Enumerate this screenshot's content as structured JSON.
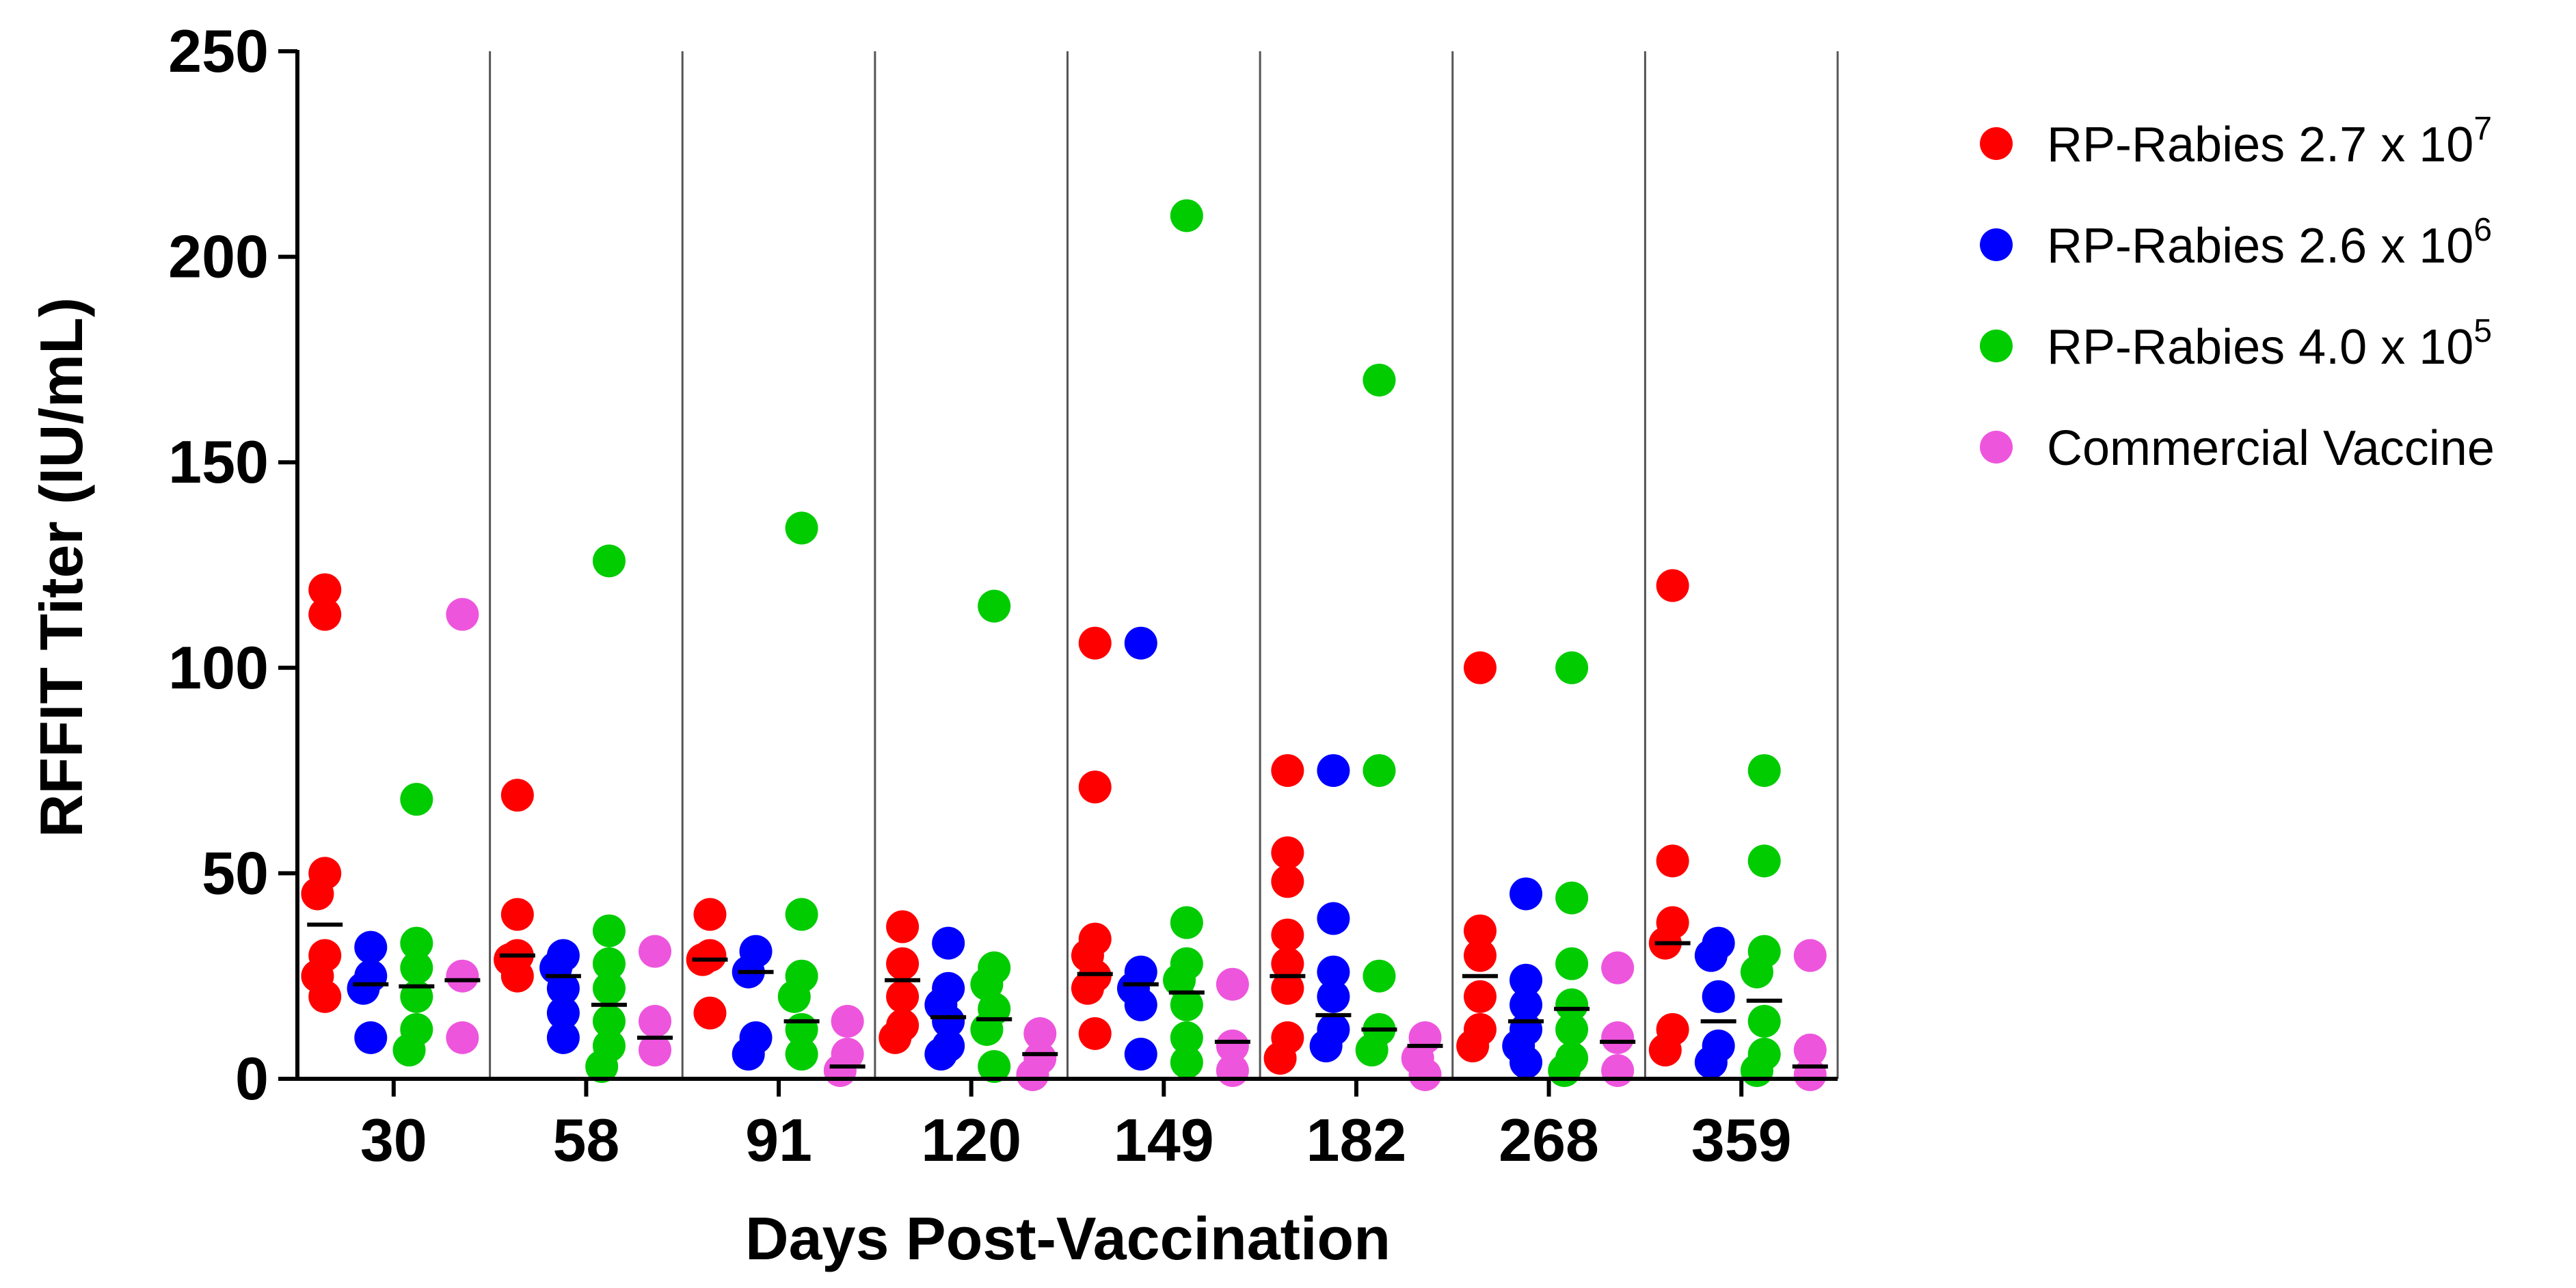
{
  "chart_data": {
    "type": "scatter",
    "xlabel": "Days Post-Vaccination",
    "ylabel": "RFFIT Titer (IU/mL)",
    "ylim": [
      0,
      250
    ],
    "yticks": [
      "0",
      "50",
      "100",
      "150",
      "200",
      "250"
    ],
    "ytick_values": [
      0,
      50,
      100,
      150,
      200,
      250
    ],
    "categories": [
      "30",
      "58",
      "91",
      "120",
      "149",
      "182",
      "268",
      "359"
    ],
    "legend_position": "right",
    "series": [
      {
        "name": "RP-Rabies 2.7 x 10",
        "exponent": "7",
        "color": "#ff0000",
        "values": [
          [
            119,
            113,
            50,
            45,
            30,
            25,
            20
          ],
          [
            69,
            40,
            30,
            29,
            25
          ],
          [
            40,
            30,
            29,
            16
          ],
          [
            37,
            28,
            20,
            13,
            10
          ],
          [
            106,
            71,
            34,
            30,
            25,
            22,
            11
          ],
          [
            75,
            55,
            48,
            35,
            28,
            22,
            10,
            5
          ],
          [
            100,
            36,
            30,
            20,
            12,
            8
          ],
          [
            120,
            53,
            38,
            33,
            12,
            7
          ]
        ],
        "medians": [
          37.5,
          30,
          29,
          24,
          25.5,
          25,
          25,
          33
        ]
      },
      {
        "name": "RP-Rabies 2.6 x 10",
        "exponent": "6",
        "color": "#0000ff",
        "values": [
          [
            32,
            25,
            22,
            10
          ],
          [
            30,
            27,
            22,
            16,
            10
          ],
          [
            31,
            26,
            10,
            6
          ],
          [
            33,
            22,
            18,
            14,
            8,
            6
          ],
          [
            106,
            26,
            22,
            18,
            6
          ],
          [
            75,
            39,
            26,
            20,
            12,
            8
          ],
          [
            45,
            24,
            18,
            12,
            8,
            4
          ],
          [
            33,
            30,
            20,
            8,
            4
          ]
        ],
        "medians": [
          23,
          25,
          26,
          15,
          23,
          15.5,
          14,
          14
        ]
      },
      {
        "name": "RP-Rabies 4.0 x 10",
        "exponent": "5",
        "color": "#00cc00",
        "values": [
          [
            68,
            33,
            27,
            20,
            12,
            7
          ],
          [
            126,
            36,
            28,
            22,
            14,
            8,
            3
          ],
          [
            134,
            40,
            25,
            20,
            12,
            6
          ],
          [
            115,
            27,
            23,
            17,
            12,
            3
          ],
          [
            210,
            38,
            28,
            24,
            18,
            10,
            4
          ],
          [
            170,
            75,
            25,
            12,
            7
          ],
          [
            100,
            44,
            28,
            18,
            12,
            5,
            2
          ],
          [
            75,
            53,
            31,
            26,
            14,
            6,
            2
          ]
        ],
        "medians": [
          22.5,
          18,
          14,
          14.5,
          21,
          12,
          17,
          19
        ]
      },
      {
        "name": "Commercial Vaccine",
        "exponent": "",
        "color": "#ee55dd",
        "values": [
          [
            113,
            25,
            10
          ],
          [
            31,
            14,
            7
          ],
          [
            14,
            6,
            2
          ],
          [
            11,
            5,
            1
          ],
          [
            23,
            8,
            2
          ],
          [
            10,
            5,
            1
          ],
          [
            27,
            10,
            2
          ],
          [
            30,
            7,
            1
          ]
        ],
        "medians": [
          24,
          10,
          3,
          6,
          9,
          8,
          9,
          3
        ]
      }
    ]
  }
}
